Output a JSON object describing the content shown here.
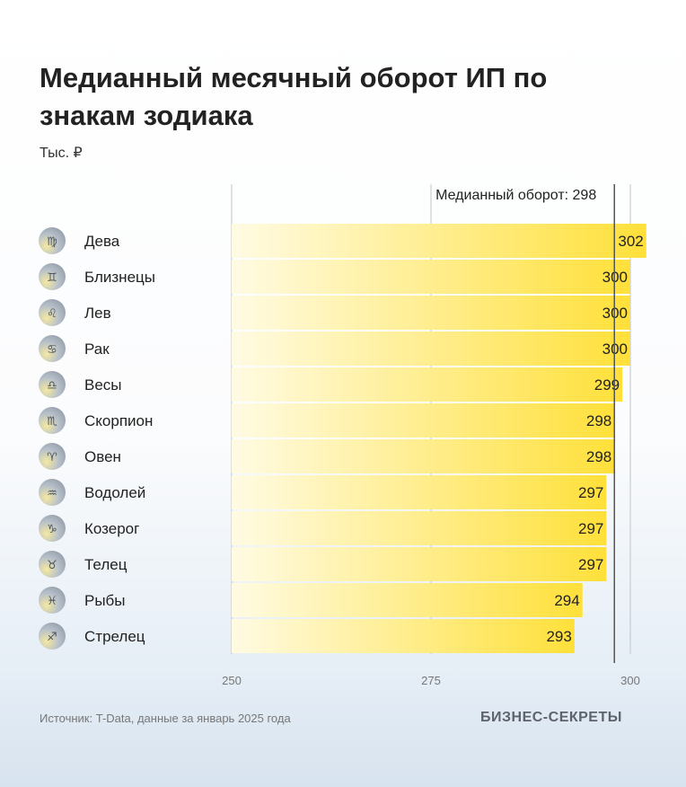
{
  "title": "Медианный месячный оборот ИП по знакам зодиака",
  "unit": "Тыс. ₽",
  "source": "Источник: T-Data, данные за январь 2025 года",
  "brand": "БИЗНЕС-СЕКРЕТЫ",
  "colors": {
    "bar_start": "#fffbe3",
    "bar_end": "#ffe03a",
    "icon": "#9aa3ad"
  },
  "chart_data": {
    "type": "bar",
    "orientation": "horizontal",
    "categories": [
      "Дева",
      "Близнецы",
      "Лев",
      "Рак",
      "Весы",
      "Скорпион",
      "Овен",
      "Водолей",
      "Козерог",
      "Телец",
      "Рыбы",
      "Стрелец"
    ],
    "icons": [
      "♍",
      "♊",
      "♌",
      "♋",
      "♎",
      "♏",
      "♈",
      "♒",
      "♑",
      "♉",
      "♓",
      "♐"
    ],
    "values": [
      302,
      300,
      300,
      300,
      299,
      298,
      298,
      297,
      297,
      297,
      294,
      293
    ],
    "xlim": [
      250,
      302
    ],
    "ticks": [
      250,
      275,
      300
    ],
    "grid": true,
    "reference_line": {
      "value": 298,
      "label": "Медианный оборот: 298"
    }
  }
}
